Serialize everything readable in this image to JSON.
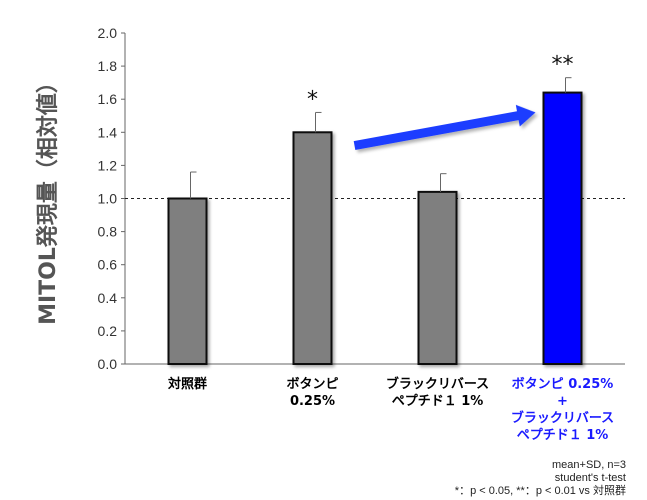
{
  "chart_data": {
    "type": "bar",
    "ylabel": "MITOL発現量（相対値）",
    "ylim": [
      0,
      2.0
    ],
    "yticks": [
      "0.0",
      "0.2",
      "0.4",
      "0.6",
      "0.8",
      "1.0",
      "1.2",
      "1.4",
      "1.6",
      "1.8",
      "2.0"
    ],
    "reference_line": 1.0,
    "categories": [
      {
        "lines": [
          "対照群"
        ],
        "color": "#000000"
      },
      {
        "lines": [
          "ボタンピ",
          "0.25%"
        ],
        "color": "#000000"
      },
      {
        "lines": [
          "ブラックリバース",
          "ペプチド１ 1%"
        ],
        "color": "#000000"
      },
      {
        "lines": [
          "ボタンピ 0.25%",
          "+",
          "ブラックリバース",
          "ペプチド１ 1%"
        ],
        "color": "#1a1aff"
      }
    ],
    "values": [
      1.0,
      1.4,
      1.04,
      1.64
    ],
    "errors": [
      0.16,
      0.12,
      0.11,
      0.09
    ],
    "significance": [
      "",
      "*",
      "",
      "**"
    ],
    "bar_colors": [
      "#7f7f7f",
      "#7f7f7f",
      "#7f7f7f",
      "#0000ff"
    ],
    "arrow_color": "#1a3cff",
    "footnotes": [
      "mean+SD, n=3",
      "student's t-test",
      "*：p < 0.05, **：p < 0.01 vs 対照群"
    ]
  }
}
